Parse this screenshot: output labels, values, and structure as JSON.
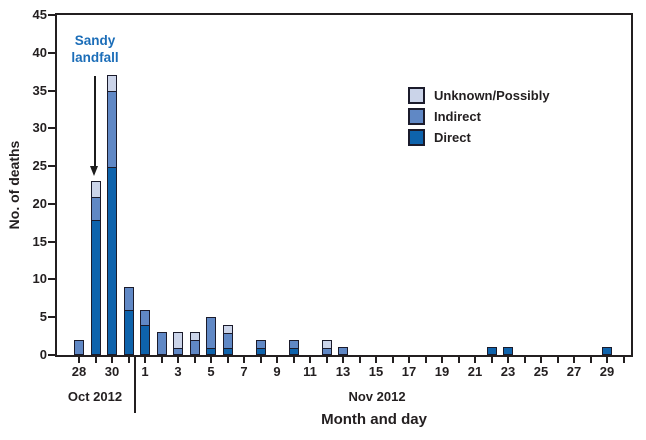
{
  "chart_data": {
    "type": "bar",
    "stacked": true,
    "title": "",
    "ylabel": "No. of deaths",
    "xlabel": "Month and day",
    "ylim": [
      0,
      45
    ],
    "yticks": [
      0,
      5,
      10,
      15,
      20,
      25,
      30,
      35,
      40,
      45
    ],
    "grid": false,
    "categories": [
      "Oct 28",
      "Oct 29",
      "Oct 30",
      "Oct 31",
      "Nov 1",
      "Nov 2",
      "Nov 3",
      "Nov 4",
      "Nov 5",
      "Nov 6",
      "Nov 7",
      "Nov 8",
      "Nov 9",
      "Nov 10",
      "Nov 11",
      "Nov 12",
      "Nov 13",
      "Nov 14",
      "Nov 15",
      "Nov 16",
      "Nov 17",
      "Nov 18",
      "Nov 19",
      "Nov 20",
      "Nov 21",
      "Nov 22",
      "Nov 23",
      "Nov 24",
      "Nov 25",
      "Nov 26",
      "Nov 27",
      "Nov 28",
      "Nov 29",
      "Nov 30"
    ],
    "x_tick_labels": [
      "28",
      "",
      "30",
      "",
      "1",
      "",
      "3",
      "",
      "5",
      "",
      "7",
      "",
      "9",
      "",
      "11",
      "",
      "13",
      "",
      "15",
      "",
      "17",
      "",
      "19",
      "",
      "21",
      "",
      "23",
      "",
      "25",
      "",
      "27",
      "",
      "29",
      ""
    ],
    "series": [
      {
        "name": "Direct",
        "color": "#0e63ac",
        "values": [
          0,
          18,
          25,
          6,
          4,
          0,
          0,
          0,
          1,
          1,
          0,
          1,
          0,
          1,
          0,
          0,
          0,
          0,
          0,
          0,
          0,
          0,
          0,
          0,
          0,
          1,
          1,
          0,
          0,
          0,
          0,
          0,
          1,
          0
        ]
      },
      {
        "name": "Indirect",
        "color": "#6088c5",
        "values": [
          2,
          3,
          10,
          3,
          2,
          3,
          1,
          2,
          4,
          2,
          0,
          1,
          0,
          1,
          0,
          1,
          1,
          0,
          0,
          0,
          0,
          0,
          0,
          0,
          0,
          0,
          0,
          0,
          0,
          0,
          0,
          0,
          0,
          0
        ]
      },
      {
        "name": "Unknown/Possibly",
        "color": "#cbd4e9",
        "values": [
          0,
          2,
          2,
          0,
          0,
          0,
          2,
          1,
          0,
          1,
          0,
          0,
          0,
          0,
          0,
          1,
          0,
          0,
          0,
          0,
          0,
          0,
          0,
          0,
          0,
          0,
          0,
          0,
          0,
          0,
          0,
          0,
          0,
          0
        ]
      }
    ],
    "legend": {
      "position": "upper-right",
      "order": [
        "Unknown/Possibly",
        "Indirect",
        "Direct"
      ]
    },
    "annotation": {
      "text": "Sandy landfall",
      "lines": [
        "Sandy",
        "landfall"
      ],
      "target_category": "Oct 29",
      "text_color": "#1b6db8"
    },
    "month_labels": {
      "oct": "Oct 2012",
      "nov": "Nov 2012"
    },
    "axis_color": "#231f20",
    "bar_outline_color": "#1b1b2b"
  }
}
